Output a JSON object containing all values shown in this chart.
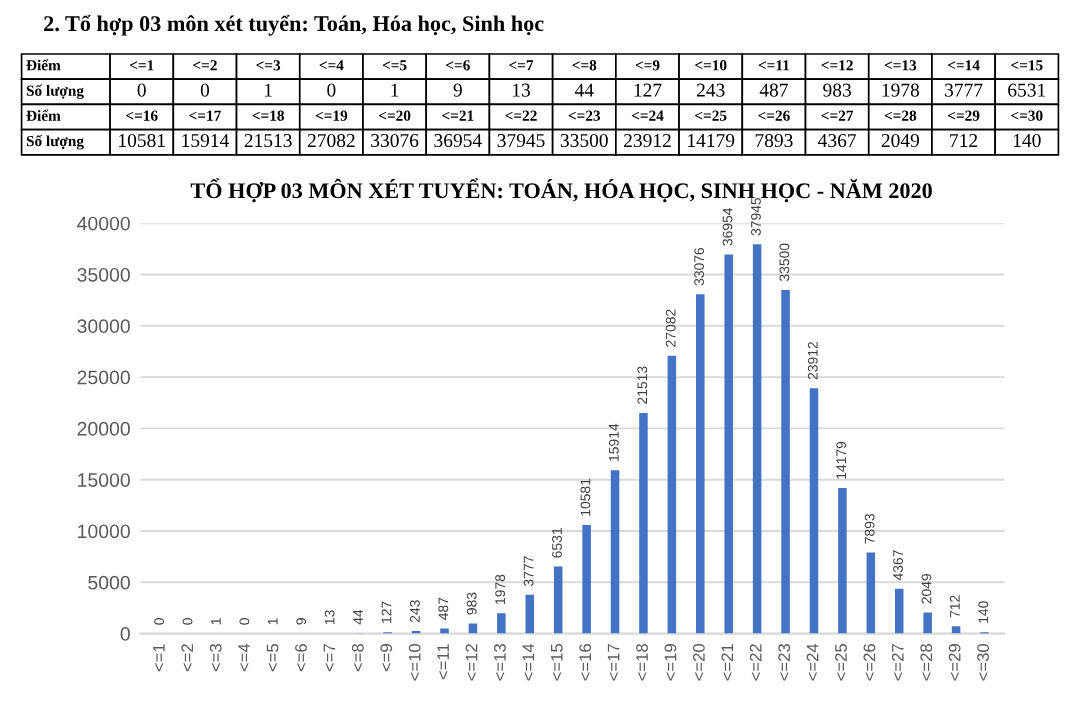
{
  "chart_data": [
    {
      "type": "other",
      "title": "2. Tổ hợp 03 môn xét tuyển: Toán, Hóa học, Sinh học",
      "categories": [
        "<=1",
        "<=2",
        "<=3",
        "<=4",
        "<=5",
        "<=6",
        "<=7",
        "<=8",
        "<=9",
        "<=10",
        "<=11",
        "<=12",
        "<=13",
        "<=14",
        "<=15",
        "<=16",
        "<=17",
        "<=18",
        "<=19",
        "<=20",
        "<=21",
        "<=22",
        "<=23",
        "<=24",
        "<=25",
        "<=26",
        "<=27",
        "<=28",
        "<=29",
        "<=30"
      ],
      "values": [
        0,
        0,
        1,
        0,
        1,
        9,
        13,
        44,
        127,
        243,
        487,
        983,
        1978,
        3777,
        6531,
        10581,
        15914,
        21513,
        27082,
        33076,
        36954,
        37945,
        33500,
        23912,
        14179,
        7893,
        4367,
        2049,
        712,
        140
      ],
      "annotations": [
        "Điểm",
        "Số lượng"
      ],
      "data_labels": true
    },
    {
      "type": "bar",
      "title": "TỔ HỢP 03 MÔN XÉT TUYỂN: TOÁN, HÓA HỌC, SINH HỌC - NĂM 2020",
      "categories": [
        "<=1",
        "<=2",
        "<=3",
        "<=4",
        "<=5",
        "<=6",
        "<=7",
        "<=8",
        "<=9",
        "<=10",
        "<=11",
        "<=12",
        "<=13",
        "<=14",
        "<=15",
        "<=16",
        "<=17",
        "<=18",
        "<=19",
        "<=20",
        "<=21",
        "<=22",
        "<=23",
        "<=24",
        "<=25",
        "<=26",
        "<=27",
        "<=28",
        "<=29",
        "<=30"
      ],
      "values": [
        0,
        0,
        1,
        0,
        1,
        9,
        13,
        44,
        127,
        243,
        487,
        983,
        1978,
        3777,
        6531,
        10581,
        15914,
        21513,
        27082,
        33076,
        36954,
        37945,
        33500,
        23912,
        14179,
        7893,
        4367,
        2049,
        712,
        140
      ],
      "color": "#4472c4",
      "ylim": [
        0,
        40000
      ],
      "yticks": [
        0,
        5000,
        10000,
        15000,
        20000,
        25000,
        30000,
        35000,
        40000
      ],
      "grid": "y",
      "data_labels": true
    }
  ]
}
